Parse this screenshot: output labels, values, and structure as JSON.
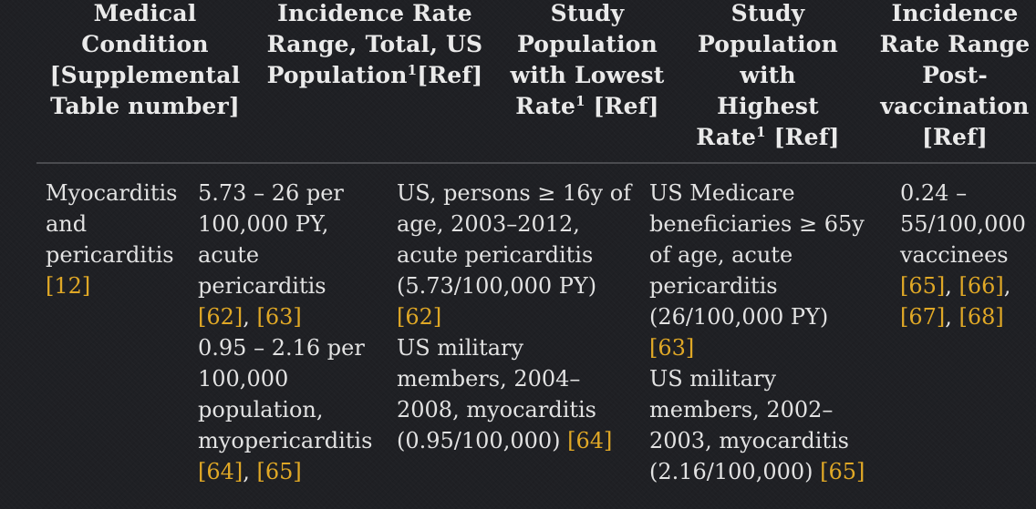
{
  "header": {
    "col1": [
      "Medical",
      "Condition",
      "[Supplemental",
      "Table number]"
    ],
    "col2_lines": [
      "Incidence Rate",
      "Range, Total, US"
    ],
    "col2_last_pre": "Population",
    "col2_last_sup": "1",
    "col2_last_post": "[Ref]",
    "col3_lines": [
      "Study",
      "Population",
      "with Lowest"
    ],
    "col3_last_pre": "Rate",
    "col3_last_sup": "1",
    "col3_last_post": " [Ref]",
    "col4_lines": [
      "Study",
      "Population",
      "with",
      "Highest"
    ],
    "col4_last_pre": "Rate",
    "col4_last_sup": "1",
    "col4_last_post": " [Ref]",
    "col5": [
      "Incidence",
      "Rate Range",
      "Post-",
      "vaccination",
      "[Ref]"
    ]
  },
  "row": {
    "condition": [
      "Myocarditis",
      "and",
      "pericarditis"
    ],
    "condition_ref": "[12]",
    "total": {
      "a": [
        "5.73 – 26 per",
        "100,000 PY,",
        "acute",
        "pericarditis"
      ],
      "a_ref1": "[62]",
      "a_ref2": "[63]",
      "b": [
        "0.95 – 2.16 per",
        "100,000",
        "population,",
        "myopericarditis"
      ],
      "b_ref1": "[64]",
      "b_ref2": "[65]"
    },
    "lowest": {
      "a": [
        "US, persons ≥ 16y of",
        "age, 2003–2012,",
        "acute pericarditis",
        "(5.73/100,000 PY)"
      ],
      "a_ref": "[62]",
      "b": [
        "US military",
        "members, 2004–",
        "2008, myocarditis"
      ],
      "b_last": "(0.95/100,000)",
      "b_ref": "[64]"
    },
    "highest": {
      "a": [
        "US Medicare",
        "beneficiaries ≥ 65y",
        "of age, acute",
        "pericarditis",
        "(26/100,000 PY)"
      ],
      "a_ref": "[63]",
      "b": [
        "US military",
        "members, 2002–",
        "2003, myocarditis"
      ],
      "b_last": "(2.16/100,000)",
      "b_ref": "[65]"
    },
    "post": {
      "lines": [
        "0.24 –",
        "55/100,000",
        "vaccinees"
      ],
      "refs_line1": [
        "[65]",
        "[66]"
      ],
      "refs_line2": [
        "[67]",
        "[68]"
      ]
    }
  },
  "colors": {
    "background": "#1f2024",
    "text": "#e6e6e6",
    "reference": "#e0a826",
    "rule": "#4a4b4f"
  }
}
